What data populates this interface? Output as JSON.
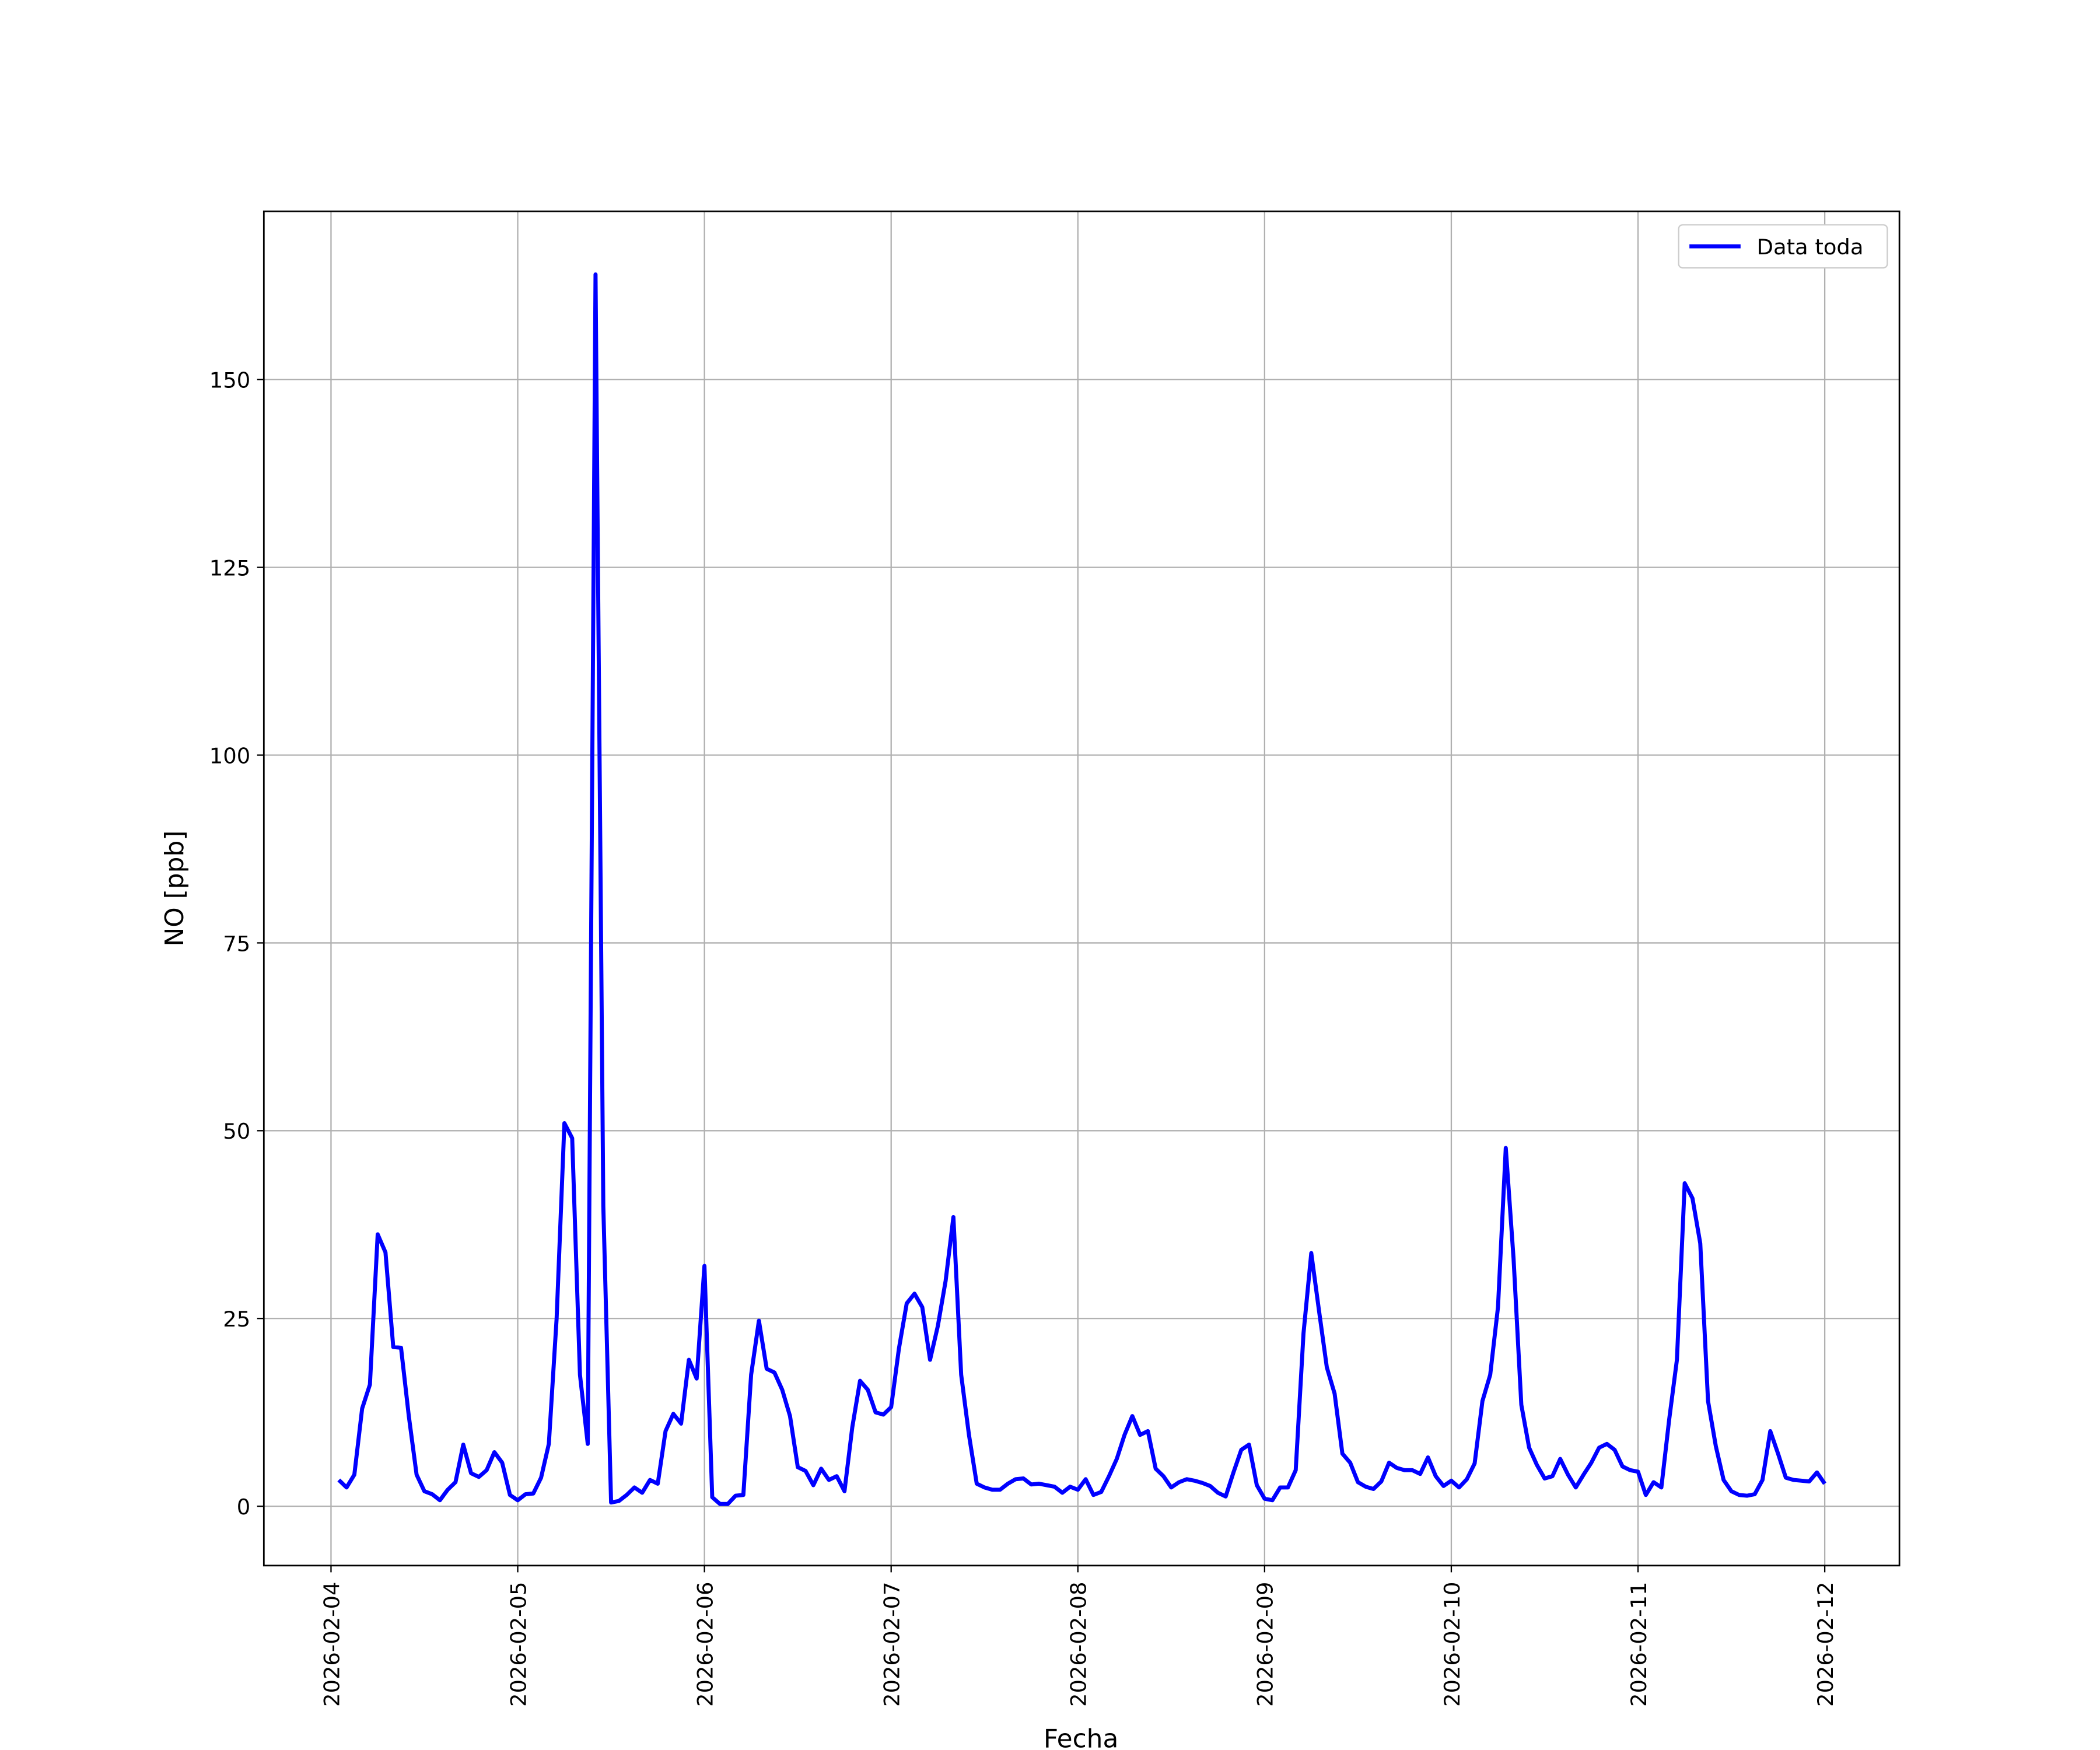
{
  "chart_data": {
    "type": "line",
    "xlabel": "Fecha",
    "ylabel": "NO [ppb]",
    "x": [
      "2026-02-04T01:00",
      "2026-02-04T02:00",
      "2026-02-04T03:00",
      "2026-02-04T04:00",
      "2026-02-04T05:00",
      "2026-02-04T06:00",
      "2026-02-04T07:00",
      "2026-02-04T08:00",
      "2026-02-04T09:00",
      "2026-02-04T10:00",
      "2026-02-04T11:00",
      "2026-02-04T12:00",
      "2026-02-04T13:00",
      "2026-02-04T14:00",
      "2026-02-04T15:00",
      "2026-02-04T16:00",
      "2026-02-04T17:00",
      "2026-02-04T18:00",
      "2026-02-04T19:00",
      "2026-02-04T20:00",
      "2026-02-04T21:00",
      "2026-02-04T22:00",
      "2026-02-04T23:00",
      "2026-02-05T00:00",
      "2026-02-05T01:00",
      "2026-02-05T02:00",
      "2026-02-05T03:00",
      "2026-02-05T04:00",
      "2026-02-05T05:00",
      "2026-02-05T06:00",
      "2026-02-05T07:00",
      "2026-02-05T08:00",
      "2026-02-05T09:00",
      "2026-02-05T10:00",
      "2026-02-05T11:00",
      "2026-02-05T12:00",
      "2026-02-05T13:00",
      "2026-02-05T14:00",
      "2026-02-05T15:00",
      "2026-02-05T16:00",
      "2026-02-05T17:00",
      "2026-02-05T18:00",
      "2026-02-05T19:00",
      "2026-02-05T20:00",
      "2026-02-05T21:00",
      "2026-02-05T22:00",
      "2026-02-05T23:00",
      "2026-02-06T00:00",
      "2026-02-06T01:00",
      "2026-02-06T02:00",
      "2026-02-06T03:00",
      "2026-02-06T04:00",
      "2026-02-06T05:00",
      "2026-02-06T06:00",
      "2026-02-06T07:00",
      "2026-02-06T08:00",
      "2026-02-06T09:00",
      "2026-02-06T10:00",
      "2026-02-06T11:00",
      "2026-02-06T12:00",
      "2026-02-06T13:00",
      "2026-02-06T14:00",
      "2026-02-06T15:00",
      "2026-02-06T16:00",
      "2026-02-06T17:00",
      "2026-02-06T18:00",
      "2026-02-06T19:00",
      "2026-02-06T20:00",
      "2026-02-06T21:00",
      "2026-02-06T22:00",
      "2026-02-06T23:00",
      "2026-02-07T00:00",
      "2026-02-07T01:00",
      "2026-02-07T02:00",
      "2026-02-07T03:00",
      "2026-02-07T04:00",
      "2026-02-07T05:00",
      "2026-02-07T06:00",
      "2026-02-07T07:00",
      "2026-02-07T08:00",
      "2026-02-07T09:00",
      "2026-02-07T10:00",
      "2026-02-07T11:00",
      "2026-02-07T12:00",
      "2026-02-07T13:00",
      "2026-02-07T14:00",
      "2026-02-07T15:00",
      "2026-02-07T16:00",
      "2026-02-07T17:00",
      "2026-02-07T18:00",
      "2026-02-07T19:00",
      "2026-02-07T20:00",
      "2026-02-07T21:00",
      "2026-02-07T22:00",
      "2026-02-07T23:00",
      "2026-02-08T00:00",
      "2026-02-08T01:00",
      "2026-02-08T02:00",
      "2026-02-08T03:00",
      "2026-02-08T04:00",
      "2026-02-08T05:00",
      "2026-02-08T06:00",
      "2026-02-08T07:00",
      "2026-02-08T08:00",
      "2026-02-08T09:00",
      "2026-02-08T10:00",
      "2026-02-08T11:00",
      "2026-02-08T12:00",
      "2026-02-08T13:00",
      "2026-02-08T14:00",
      "2026-02-08T15:00",
      "2026-02-08T16:00",
      "2026-02-08T17:00",
      "2026-02-08T18:00",
      "2026-02-08T19:00",
      "2026-02-08T20:00",
      "2026-02-08T21:00",
      "2026-02-08T22:00",
      "2026-02-08T23:00",
      "2026-02-09T00:00",
      "2026-02-09T01:00",
      "2026-02-09T02:00",
      "2026-02-09T03:00",
      "2026-02-09T04:00",
      "2026-02-09T05:00",
      "2026-02-09T06:00",
      "2026-02-09T07:00",
      "2026-02-09T08:00",
      "2026-02-09T09:00",
      "2026-02-09T10:00",
      "2026-02-09T11:00",
      "2026-02-09T12:00",
      "2026-02-09T13:00",
      "2026-02-09T14:00",
      "2026-02-09T15:00",
      "2026-02-09T16:00",
      "2026-02-09T17:00",
      "2026-02-09T18:00",
      "2026-02-09T19:00",
      "2026-02-09T20:00",
      "2026-02-09T21:00",
      "2026-02-09T22:00",
      "2026-02-09T23:00",
      "2026-02-10T00:00",
      "2026-02-10T01:00",
      "2026-02-10T02:00",
      "2026-02-10T03:00",
      "2026-02-10T04:00",
      "2026-02-10T05:00",
      "2026-02-10T06:00",
      "2026-02-10T07:00",
      "2026-02-10T08:00",
      "2026-02-10T09:00",
      "2026-02-10T10:00",
      "2026-02-10T11:00",
      "2026-02-10T12:00",
      "2026-02-10T13:00",
      "2026-02-10T14:00",
      "2026-02-10T15:00",
      "2026-02-10T16:00",
      "2026-02-10T17:00",
      "2026-02-10T18:00",
      "2026-02-10T19:00",
      "2026-02-10T20:00",
      "2026-02-10T21:00",
      "2026-02-10T22:00",
      "2026-02-10T23:00",
      "2026-02-11T00:00",
      "2026-02-11T01:00",
      "2026-02-11T02:00",
      "2026-02-11T03:00",
      "2026-02-11T04:00",
      "2026-02-11T05:00",
      "2026-02-11T06:00",
      "2026-02-11T07:00",
      "2026-02-11T08:00",
      "2026-02-11T09:00",
      "2026-02-11T10:00",
      "2026-02-11T11:00",
      "2026-02-11T12:00",
      "2026-02-11T13:00",
      "2026-02-11T14:00",
      "2026-02-11T15:00",
      "2026-02-11T16:00",
      "2026-02-11T17:00",
      "2026-02-11T18:00",
      "2026-02-11T19:00",
      "2026-02-11T20:00",
      "2026-02-11T21:00",
      "2026-02-11T22:00",
      "2026-02-11T23:00",
      "2026-02-12T00:00"
    ],
    "series": [
      {
        "name": "Data toda",
        "color": "#0000ff",
        "values": [
          3.5,
          2.5,
          4.2,
          13,
          16.2,
          36.2,
          33.8,
          21.2,
          21.1,
          12,
          4.2,
          2,
          1.6,
          0.8,
          2.2,
          3.2,
          8.2,
          4.4,
          3.9,
          4.8,
          7.2,
          5.8,
          1.5,
          0.8,
          1.6,
          1.7,
          3.8,
          8.3,
          25,
          51,
          49,
          17.5,
          8.3,
          164,
          40,
          0.5,
          0.7,
          1.5,
          2.5,
          1.8,
          3.5,
          3,
          10,
          12.3,
          11,
          19.5,
          17,
          32,
          1.2,
          0.3,
          0.3,
          1.4,
          1.5,
          17.5,
          24.7,
          18.3,
          17.8,
          15.5,
          12,
          5.2,
          4.7,
          2.8,
          5,
          3.5,
          4,
          2,
          10.5,
          16.7,
          15.5,
          12.5,
          12.2,
          13.2,
          21,
          27,
          28.3,
          26.5,
          19.5,
          24,
          30,
          38.5,
          17.5,
          9.5,
          3,
          2.5,
          2.2,
          2.2,
          3,
          3.6,
          3.7,
          2.9,
          3,
          2.8,
          2.6,
          1.8,
          2.6,
          2.2,
          3.6,
          1.5,
          1.9,
          4,
          6.3,
          9.5,
          12,
          9.5,
          10,
          5,
          4,
          2.5,
          3.2,
          3.6,
          3.4,
          3.1,
          2.7,
          1.8,
          1.3,
          4.5,
          7.5,
          8.2,
          2.8,
          1,
          0.8,
          2.5,
          2.5,
          4.8,
          23,
          33.7,
          26,
          18.5,
          15,
          7,
          5.8,
          3.2,
          2.6,
          2.3,
          3.3,
          5.8,
          5.1,
          4.8,
          4.8,
          4.3,
          6.5,
          4,
          2.7,
          3.4,
          2.5,
          3.6,
          5.7,
          14,
          17.5,
          26.5,
          47.7,
          33,
          13.5,
          7.8,
          5.5,
          3.7,
          4,
          6.3,
          4.2,
          2.5,
          4.2,
          5.8,
          7.8,
          8.3,
          7.5,
          5.3,
          4.8,
          4.6,
          1.5,
          3.2,
          2.5,
          11.5,
          19.5,
          43,
          41,
          35,
          14,
          8,
          3.5,
          2,
          1.5,
          1.4,
          1.6,
          3.5,
          10,
          7,
          3.8,
          3.5,
          3.4,
          3.3,
          4.5,
          3
        ]
      }
    ],
    "xlim": [
      "2026-02-03T15:22",
      "2026-02-12T09:36"
    ],
    "xticks": [
      "2026-02-04",
      "2026-02-05",
      "2026-02-06",
      "2026-02-07",
      "2026-02-08",
      "2026-02-09",
      "2026-02-10",
      "2026-02-11",
      "2026-02-12"
    ],
    "ylim": [
      -7.9,
      172.4
    ],
    "yticks": [
      0,
      25,
      50,
      75,
      100,
      125,
      150
    ],
    "grid": true,
    "legend": "upper right"
  }
}
